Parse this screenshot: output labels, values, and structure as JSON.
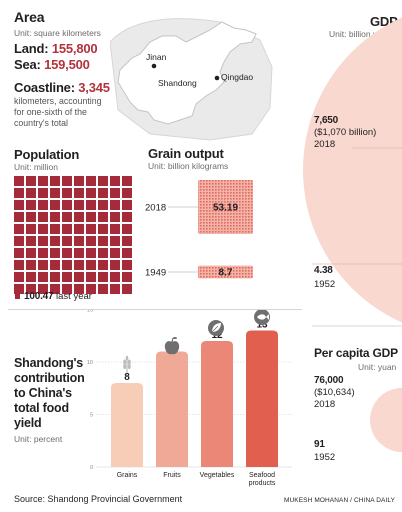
{
  "area": {
    "title": "Area",
    "unit": "Unit: square kilometers",
    "land_label": "Land:",
    "land_value": "155,800",
    "sea_label": "Sea:",
    "sea_value": "159,500",
    "coastline_label": "Coastline:",
    "coastline_value": "3,345",
    "coastline_note_1": "kilometers, accounting",
    "coastline_note_2": "for one-sixth of the",
    "coastline_note_3": "country's total"
  },
  "map": {
    "city_1": "Jinan",
    "province": "Shandong",
    "city_2": "Qingdao"
  },
  "population": {
    "title": "Population",
    "unit": "Unit: million",
    "value": "100.47",
    "value_suffix": "last year",
    "color": "#a52a3a"
  },
  "grain_output": {
    "title": "Grain output",
    "unit": "Unit: billion kilograms",
    "color": "#e8847b"
  },
  "gdp": {
    "title": "GDP",
    "unit": "Unit: billion yuan",
    "value_2018": "7,650",
    "value_2018_usd": "($1,070 billion)",
    "year_2018": "2018",
    "value_1952": "4.38",
    "year_1952": "1952",
    "color": "#f8d8cf"
  },
  "per_capita_gdp": {
    "title": "Per capita GDP",
    "unit": "Unit: yuan",
    "value_2018": "76,000",
    "value_2018_usd": "($10,634)",
    "year_2018": "2018",
    "value_1952": "91",
    "year_1952": "1952"
  },
  "contribution": {
    "title_1": "Shandong's",
    "title_2": "contribution",
    "title_3": "to China's",
    "title_4": "total food",
    "title_5": "yield",
    "unit": "Unit: percent"
  },
  "footer": {
    "source": "Source: Shandong Provincial Government",
    "credit": "MUKESH MOHANAN / CHINA DAILY"
  },
  "icons": [
    "wheat-icon",
    "apple-icon",
    "leaf-icon",
    "fish-icon"
  ],
  "chart_data": [
    {
      "type": "bar",
      "name_in_figure": "Grain output",
      "categories": [
        "2018",
        "1949"
      ],
      "values": [
        53.19,
        8.7
      ]
    },
    {
      "type": "bar",
      "name_in_figure": "Shandong's contribution to China's total food yield",
      "categories": [
        "Grains",
        "Fruits",
        "Vegetables",
        "Seafood products"
      ],
      "category_labels": [
        "Grains",
        "Fruits",
        "Vegetables",
        "Seafood",
        "products"
      ],
      "values": [
        8,
        11,
        12,
        13
      ],
      "y_ticks": [
        0,
        5,
        10,
        15
      ],
      "ylim": [
        0,
        15
      ],
      "colors": [
        "#f7cdb8",
        "#f0a996",
        "#eb8777",
        "#e05f4e"
      ]
    },
    {
      "type": "area",
      "name_in_figure": "GDP",
      "categories": [
        "2018",
        "1952"
      ],
      "values": [
        7650,
        4.38
      ]
    },
    {
      "type": "area",
      "name_in_figure": "Per capita GDP",
      "categories": [
        "2018",
        "1952"
      ],
      "values": [
        76000,
        91
      ]
    }
  ]
}
